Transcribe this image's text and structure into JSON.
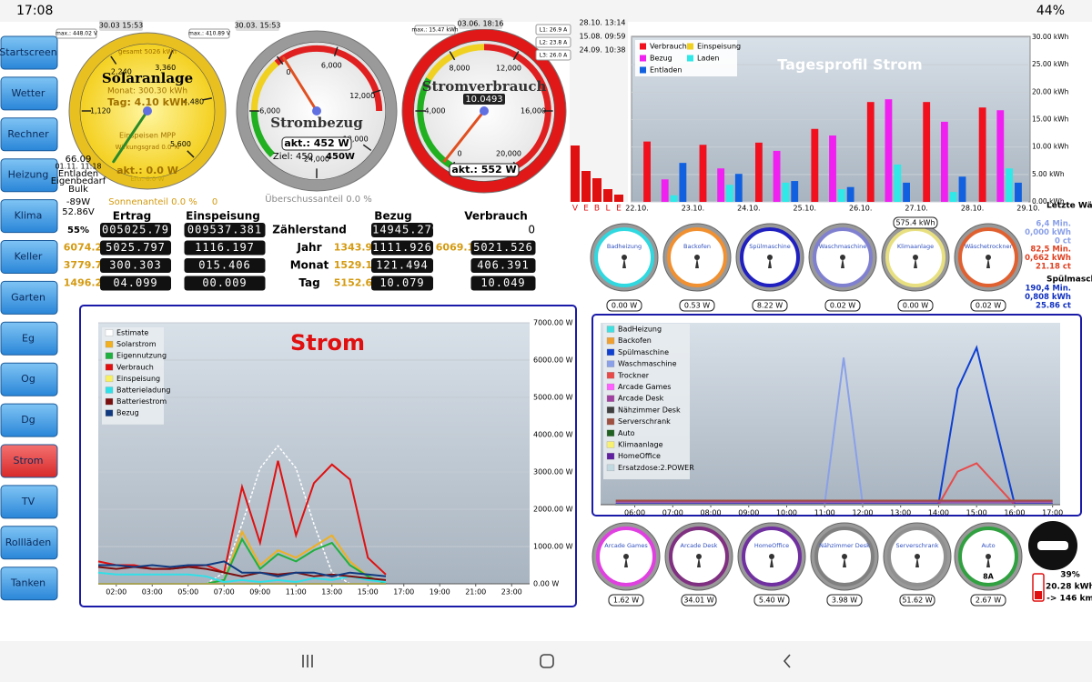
{
  "status_bar": {
    "time": "17:08",
    "battery": "44%"
  },
  "nav": {
    "active_index": 10,
    "buttons": [
      "Startscreen",
      "Wetter",
      "Rechner",
      "Heizung",
      "Klima",
      "Keller",
      "Garten",
      "Eg",
      "Og",
      "Dg",
      "Strom",
      "TV",
      "Rollläden",
      "Tanken"
    ]
  },
  "gauges": [
    {
      "title": "Solaranlage",
      "max_label": "max.: 448.02 V",
      "max_date": "30.03 15:53",
      "ticks": [
        {
          "value": 1120,
          "label": "1,120"
        },
        {
          "value": 2240,
          "label": "2,240"
        },
        {
          "value": 3360,
          "label": "3,360"
        },
        {
          "value": 4480,
          "label": "4,480"
        },
        {
          "value": 5600,
          "label": "5,600"
        }
      ],
      "lines": [
        "gesamt 5026 kWh",
        "Monat: 300.30 kWh",
        "Tag: 4.10 kWh",
        "Einspeisen MPP",
        "Wirkungsgrad 0.0 %",
        "akt.: 0.0 W",
        "Ertr. 0.0 W"
      ],
      "value": 0
    },
    {
      "title": "Strombezug",
      "max_label": "max.: 410.89 V",
      "max_date": "30.03. 15:53",
      "ticks": [
        {
          "value": -6000,
          "label": "-6,000"
        },
        0,
        {
          "value": 6000,
          "label": "6,000"
        },
        {
          "value": 12000,
          "label": "12,000"
        },
        {
          "value": 18000,
          "label": "18,000"
        },
        {
          "value": 24000,
          "label": "24,000"
        }
      ],
      "lines": [
        "akt.: 452 W",
        "Ziel: 450",
        "450W"
      ],
      "value": 452
    },
    {
      "title": "Stromverbrauch",
      "max_label": "max.: 15.47 kWh",
      "max_date": "03.06. 18:16",
      "ticks": [
        0,
        {
          "value": 4000,
          "label": "4,000"
        },
        {
          "value": 8000,
          "label": "8,000"
        },
        {
          "value": 12000,
          "label": "12,000"
        },
        {
          "value": 16000,
          "label": "16,000"
        },
        {
          "value": 20000,
          "label": "20,000"
        }
      ],
      "lines": [
        "10.0493",
        "akt.: 552 W"
      ],
      "value": 552
    }
  ],
  "phases": {
    "currents": [
      "L1: 26.9 A",
      "L2: 23.8 A",
      "L3: 26.0 A"
    ],
    "dates": [
      "28.10. 13:14",
      "15.08. 09:59",
      "24.09. 10:38"
    ],
    "bar_labels": [
      "V",
      "E",
      "B",
      "L",
      "E"
    ]
  },
  "battery_panel": [
    "66.09",
    "01.11. 11:18",
    "Entladen",
    "Eigenbedarf",
    "Bulk",
    "-89W",
    "52.86V",
    "55%"
  ],
  "shares": {
    "sonnenanteil": "Sonnenanteil 0.0 %",
    "sonnen_value": "0",
    "ueberschuss": "Überschussanteil 0.0 %"
  },
  "counters": {
    "headers": [
      "Ertrag",
      "Einspeisung",
      "Bezug",
      "Verbrauch"
    ],
    "rows": [
      [
        null,
        "005025.79",
        "009537.381",
        "Zählerstand",
        null,
        "014945.279",
        null,
        "0"
      ],
      [
        "6074.2",
        "5025.797",
        "1116.197",
        "Jahr",
        "1343.9",
        "1111.926",
        "6069.1",
        "5021.526"
      ],
      [
        "3779.7",
        "300.303",
        "015.406",
        "Monat",
        "1529.1",
        "121.494",
        null,
        "406.391"
      ],
      [
        "1496.2",
        "04.099",
        "00.009",
        "Tag",
        "5152.6",
        "10.079",
        null,
        "10.049"
      ]
    ]
  },
  "day_profile": {
    "type": "bar",
    "title": "Tagesprofil Strom",
    "categories": [
      "22.10.",
      "23.10.",
      "24.10.",
      "25.10.",
      "26.10.",
      "27.10.",
      "28.10.",
      "29.10."
    ],
    "ylim": [
      0,
      30
    ],
    "yticks": [
      {
        "value": 0,
        "label": "0.00 kWh"
      },
      {
        "value": 5,
        "label": "5.00 kWh"
      },
      {
        "value": 10,
        "label": "10.00 kWh"
      },
      {
        "value": 15,
        "label": "15.00 kWh"
      },
      {
        "value": 20,
        "label": "20.00 kWh"
      },
      {
        "value": 25,
        "label": "25.00 kWh"
      },
      {
        "value": 30,
        "label": "30.00 kWh"
      }
    ],
    "series": [
      {
        "name": "Verbrauch",
        "color": "#f0101e",
        "values": [
          11,
          10.4,
          10.8,
          13.3,
          18.2,
          18.2,
          17.2,
          null
        ]
      },
      {
        "name": "Einspeisung",
        "color": "#f0d020",
        "values": [
          0,
          0,
          0,
          0,
          0,
          0,
          0,
          null
        ]
      },
      {
        "name": "Bezug",
        "color": "#f020f0",
        "values": [
          4.1,
          6.1,
          9.3,
          12.1,
          18.7,
          14.6,
          16.7,
          null
        ]
      },
      {
        "name": "Laden",
        "color": "#30e8e8",
        "values": [
          1.2,
          3.1,
          3.5,
          2.3,
          6.8,
          1.8,
          6.1,
          null
        ]
      },
      {
        "name": "Entladen",
        "color": "#1060e0",
        "values": [
          7.1,
          5.1,
          3.8,
          2.7,
          3.5,
          4.6,
          3.5,
          null
        ]
      }
    ]
  },
  "devices_top": {
    "names": [
      "Badheizung",
      "Backofen",
      "Spülmaschine",
      "Waschmaschine",
      "Klimaanlage",
      "Wäschetrockner"
    ],
    "values": [
      "0.00 W",
      "0.53 W",
      "8.22 W",
      "0.02 W",
      "0.00 W",
      "0.02 W"
    ],
    "colors": [
      "#30d8e0",
      "#f09030",
      "#2020c0",
      "#8080d0",
      "#e8e080",
      "#e06030"
    ],
    "extra": "575.4 kWh"
  },
  "devices_bottom": {
    "names": [
      "Arcade Games",
      "Arcade Desk",
      "HomeOffice",
      "Nähzimmer Desk",
      "Serverschrank",
      "Auto"
    ],
    "values": [
      "1.62 W",
      "34.01 W",
      "5.40 W",
      "3.98 W",
      "51.62 W",
      "2.67 W"
    ],
    "colors": [
      "#e040e0",
      "#803080",
      "#7030a0",
      "#808080",
      "#909090",
      "#30a040"
    ],
    "extra": "8A"
  },
  "side_panel": {
    "heading": "Letzte Wäsch",
    "wash": [
      "6,4 Min.",
      "0,000 kWh",
      "0 ct"
    ],
    "dry": [
      "82,5 Min.",
      "0,662 kWh",
      "21.18 ct"
    ],
    "heading2": "Spülmaschi",
    "dish": [
      "190,4 Min.",
      "0,808 kWh",
      "25.86 ct"
    ]
  },
  "car": [
    "39%",
    "20.28 kWh",
    "-> 146 km"
  ],
  "strom_chart": {
    "type": "line",
    "title": "Strom",
    "x": [
      1,
      2,
      3,
      4,
      5,
      6,
      7,
      8,
      9,
      10,
      11,
      12,
      13,
      14,
      15,
      16,
      17
    ],
    "xlim": [
      1,
      25
    ],
    "xticks": [
      {
        "value": 2,
        "label": "02:00"
      },
      {
        "value": 4,
        "label": "03:00"
      },
      {
        "value": 6,
        "label": "05:00"
      },
      {
        "value": 8,
        "label": "07:00"
      },
      {
        "value": 10,
        "label": "09:00"
      },
      {
        "value": 12,
        "label": "11:00"
      },
      {
        "value": 14,
        "label": "13:00"
      },
      {
        "value": 16,
        "label": "15:00"
      },
      {
        "value": 18,
        "label": "17:00"
      },
      {
        "value": 20,
        "label": "19:00"
      },
      {
        "value": 22,
        "label": "21:00"
      },
      {
        "value": 24,
        "label": "23:00"
      }
    ],
    "ylim": [
      0,
      7000
    ],
    "yticks": [
      {
        "value": 0,
        "label": "0.00 W"
      },
      {
        "value": 1000,
        "label": "1000.00 W"
      },
      {
        "value": 2000,
        "label": "2000.00 W"
      },
      {
        "value": 3000,
        "label": "3000.00 W"
      },
      {
        "value": 4000,
        "label": "4000.00 W"
      },
      {
        "value": 5000,
        "label": "5000.00 W"
      },
      {
        "value": 6000,
        "label": "6000.00 W"
      },
      {
        "value": 7000,
        "label": "7000.00 W"
      }
    ],
    "series": [
      {
        "name": "Estimate",
        "color": "#ffffff",
        "values": [
          null,
          null,
          null,
          null,
          null,
          null,
          0,
          300,
          1600,
          3100,
          3700,
          3100,
          1600,
          300,
          0,
          null,
          null
        ]
      },
      {
        "name": "Solarstrom",
        "color": "#f0b020",
        "values": [
          0,
          0,
          0,
          0,
          0,
          0,
          0,
          100,
          1400,
          500,
          900,
          700,
          1000,
          1300,
          600,
          200,
          0
        ]
      },
      {
        "name": "Eigennutzung",
        "color": "#20b040",
        "values": [
          0,
          0,
          0,
          0,
          0,
          0,
          0,
          100,
          1200,
          400,
          800,
          600,
          900,
          1100,
          500,
          200,
          0
        ]
      },
      {
        "name": "Verbrauch",
        "color": "#e01010",
        "values": [
          600,
          500,
          500,
          400,
          400,
          450,
          500,
          300,
          2600,
          1100,
          3300,
          1300,
          2700,
          3200,
          2800,
          700,
          250
        ]
      },
      {
        "name": "Einspeisung",
        "color": "#f8f060",
        "values": [
          0,
          0,
          0,
          0,
          0,
          0,
          0,
          0,
          0,
          0,
          0,
          0,
          0,
          0,
          0,
          0,
          0
        ]
      },
      {
        "name": "Batterieladung",
        "color": "#30e0e8",
        "values": [
          300,
          250,
          250,
          250,
          250,
          250,
          200,
          50,
          100,
          50,
          100,
          50,
          150,
          100,
          200,
          100,
          50
        ]
      },
      {
        "name": "Batteriestrom",
        "color": "#7a1010",
        "values": [
          450,
          400,
          450,
          400,
          400,
          450,
          400,
          300,
          200,
          300,
          250,
          300,
          200,
          250,
          200,
          150,
          100
        ]
      },
      {
        "name": "Bezug",
        "color": "#103a80",
        "values": [
          500,
          500,
          450,
          500,
          450,
          500,
          500,
          600,
          300,
          300,
          200,
          300,
          300,
          200,
          300,
          250,
          200
        ]
      }
    ]
  },
  "device_chart": {
    "type": "line",
    "x": [
      5.5,
      6,
      7,
      8,
      9,
      10,
      11,
      11.5,
      12,
      13,
      14,
      14.5,
      15,
      16,
      17
    ],
    "xlim": [
      5.1,
      17.2
    ],
    "xticks": [
      {
        "value": 6,
        "label": "06:00"
      },
      {
        "value": 7,
        "label": "07:00"
      },
      {
        "value": 8,
        "label": "08:00"
      },
      {
        "value": 9,
        "label": "09:00"
      },
      {
        "value": 10,
        "label": "10:00"
      },
      {
        "value": 11,
        "label": "11:00"
      },
      {
        "value": 12,
        "label": "12:00"
      },
      {
        "value": 13,
        "label": "13:00"
      },
      {
        "value": 14,
        "label": "14:00"
      },
      {
        "value": 15,
        "label": "15:00"
      },
      {
        "value": 16,
        "label": "16:00"
      },
      {
        "value": 17,
        "label": "17:00"
      }
    ],
    "ylim": [
      0,
      2200
    ],
    "series": [
      {
        "name": "BadHeizung",
        "color": "#40e0e0",
        "values": [
          0,
          0,
          0,
          0,
          0,
          0,
          0,
          0,
          0,
          0,
          0,
          0,
          0,
          0,
          0
        ]
      },
      {
        "name": "Backofen",
        "color": "#f0a030",
        "values": [
          0,
          0,
          0,
          0,
          0,
          0,
          0,
          0,
          0,
          0,
          0,
          0,
          0,
          0,
          0
        ]
      },
      {
        "name": "Spülmaschine",
        "color": "#1040d0",
        "values": [
          10,
          10,
          10,
          10,
          10,
          10,
          10,
          10,
          10,
          10,
          10,
          1400,
          1900,
          10,
          10
        ]
      },
      {
        "name": "Waschmaschine",
        "color": "#8aa0e8",
        "values": [
          5,
          5,
          5,
          5,
          5,
          5,
          5,
          1780,
          5,
          5,
          5,
          5,
          5,
          5,
          5
        ]
      },
      {
        "name": "Trockner",
        "color": "#e84a4a",
        "values": [
          0,
          0,
          0,
          0,
          0,
          0,
          0,
          0,
          0,
          0,
          0,
          400,
          500,
          0,
          0
        ]
      },
      {
        "name": "Arcade Games",
        "color": "#ff60ff",
        "values": [
          2,
          2,
          2,
          2,
          2,
          2,
          2,
          2,
          2,
          2,
          2,
          2,
          2,
          2,
          2
        ]
      },
      {
        "name": "Arcade Desk",
        "color": "#a040a0",
        "values": [
          35,
          35,
          35,
          35,
          35,
          35,
          35,
          35,
          35,
          35,
          35,
          35,
          35,
          35,
          35
        ]
      },
      {
        "name": "Nähzimmer Desk",
        "color": "#404040",
        "values": [
          4,
          4,
          4,
          4,
          4,
          4,
          4,
          4,
          4,
          4,
          4,
          4,
          4,
          4,
          4
        ]
      },
      {
        "name": "Serverschrank",
        "color": "#a05040",
        "values": [
          50,
          50,
          50,
          50,
          50,
          50,
          50,
          50,
          50,
          50,
          50,
          50,
          50,
          50,
          50
        ]
      },
      {
        "name": "Auto",
        "color": "#206020",
        "values": [
          3,
          3,
          3,
          3,
          3,
          3,
          3,
          3,
          3,
          3,
          3,
          3,
          3,
          3,
          3
        ]
      },
      {
        "name": "Klimaanlage",
        "color": "#f8f070",
        "values": [
          0,
          0,
          0,
          0,
          0,
          0,
          0,
          0,
          0,
          0,
          0,
          0,
          0,
          0,
          0
        ]
      },
      {
        "name": "HomeOffice",
        "color": "#6020a0",
        "values": [
          5,
          5,
          5,
          5,
          5,
          5,
          5,
          5,
          5,
          5,
          5,
          5,
          5,
          5,
          5
        ]
      },
      {
        "name": "Ersatzdose:2.POWER",
        "color": "#c0d8e0",
        "values": [
          0,
          0,
          0,
          0,
          0,
          0,
          0,
          0,
          0,
          0,
          0,
          0,
          0,
          0,
          0
        ]
      }
    ]
  }
}
